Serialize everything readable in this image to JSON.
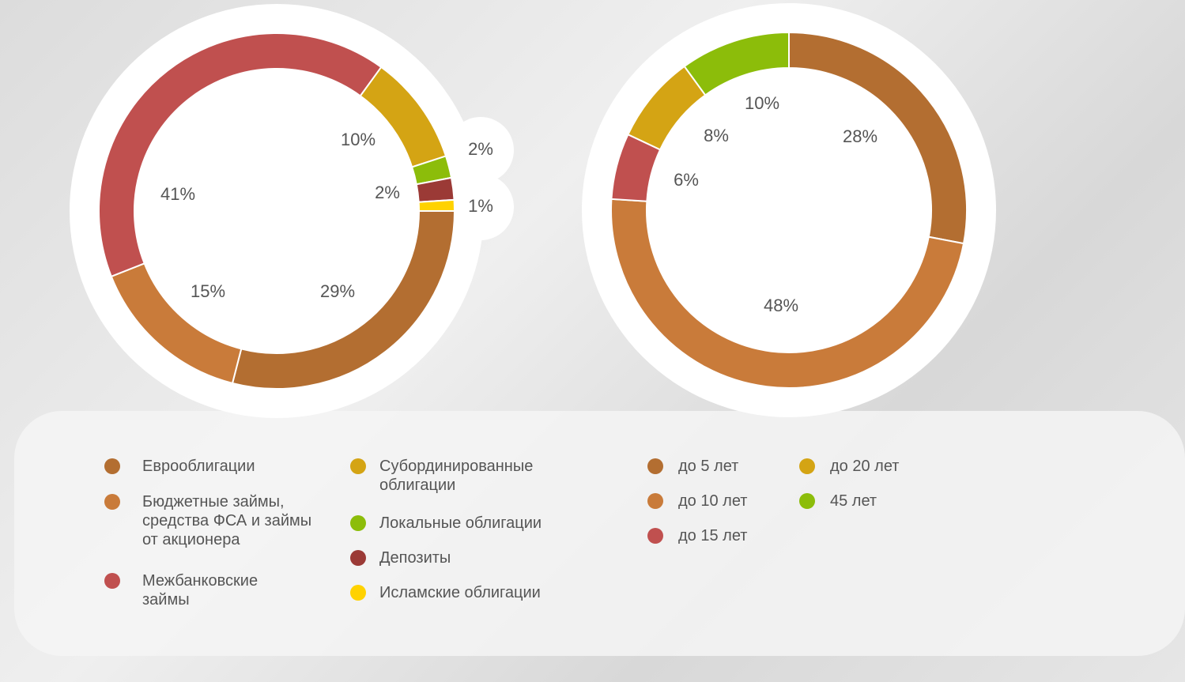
{
  "chart_data": [
    {
      "type": "pie",
      "hole": true,
      "categories": [
        "Еврооблигации",
        "Бюджетные займы, средства ФСА и займы от акционера",
        "Межбанковские займы",
        "Субординированные облигации",
        "Локальные облигации",
        "Депозиты",
        "Исламские облигации"
      ],
      "values": [
        29,
        15,
        41,
        10,
        2,
        2,
        1
      ],
      "value_labels": [
        "29%",
        "15%",
        "41%",
        "10%",
        "2%",
        "2%",
        "1%"
      ],
      "colors": [
        "#b36e31",
        "#c97b3a",
        "#c0504f",
        "#d4a414",
        "#8cbd0a",
        "#9b3a36",
        "#ffd200"
      ]
    },
    {
      "type": "pie",
      "hole": true,
      "categories": [
        "до 5 лет",
        "до 10 лет",
        "до 15 лет",
        "до 20 лет",
        "45 лет"
      ],
      "values": [
        28,
        48,
        6,
        8,
        10
      ],
      "value_labels": [
        "28%",
        "48%",
        "6%",
        "8%",
        "10%"
      ],
      "colors": [
        "#b36e31",
        "#c97b3a",
        "#c0504f",
        "#d4a414",
        "#8cbd0a"
      ]
    }
  ]
}
